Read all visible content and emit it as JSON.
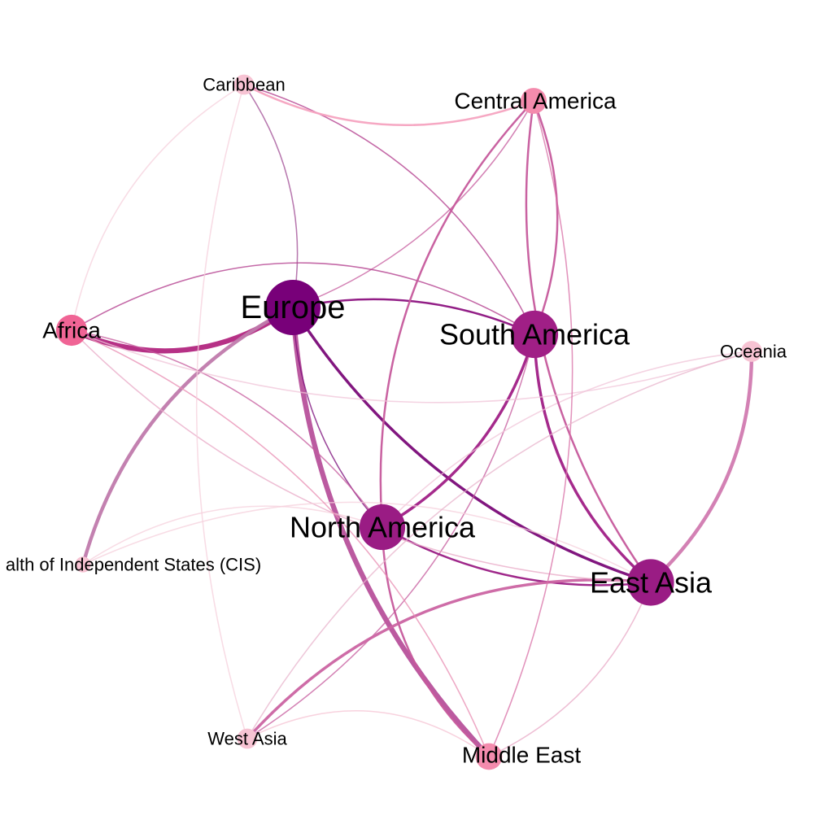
{
  "colors": {
    "strong": "#7a0a78",
    "mid": "#a01f86",
    "rose": "#c65a9c",
    "pink": "#f06495",
    "light": "#f5a3c0",
    "pale": "#f7c3d3"
  },
  "nodes": [
    {
      "id": "europe",
      "label": "Europe",
      "weight": 1.0,
      "color": "#780079"
    },
    {
      "id": "south-america",
      "label": "South America",
      "weight": 0.82,
      "color": "#a01f86"
    },
    {
      "id": "north-america",
      "label": "North America",
      "weight": 0.78,
      "color": "#9a1c84"
    },
    {
      "id": "east-asia",
      "label": "East Asia",
      "weight": 0.8,
      "color": "#9a1c84"
    },
    {
      "id": "africa",
      "label": "Africa",
      "weight": 0.45,
      "color": "#f06495"
    },
    {
      "id": "middle-east",
      "label": "Middle East",
      "weight": 0.35,
      "color": "#f48bad"
    },
    {
      "id": "central-america",
      "label": "Central America",
      "weight": 0.33,
      "color": "#f48bad"
    },
    {
      "id": "caribbean",
      "label": "Caribbean",
      "weight": 0.2,
      "color": "#f7c3d3"
    },
    {
      "id": "oceania",
      "label": "Oceania",
      "weight": 0.22,
      "color": "#f7c3d3"
    },
    {
      "id": "west-asia",
      "label": "West Asia",
      "weight": 0.2,
      "color": "#f7c3d3"
    },
    {
      "id": "cis",
      "label": "alth of Independent States (CIS)",
      "weight": 0.1,
      "color": "#f7c3d3"
    }
  ],
  "edges": [
    {
      "source": "europe",
      "target": "africa",
      "weight": 6,
      "color": "#b2267f"
    },
    {
      "source": "europe",
      "target": "middle-east",
      "weight": 6,
      "color": "#b7519b"
    },
    {
      "source": "europe",
      "target": "cis",
      "weight": 4,
      "color": "#c07aac"
    },
    {
      "source": "europe",
      "target": "east-asia",
      "weight": 3,
      "color": "#7a0a78"
    },
    {
      "source": "europe",
      "target": "south-america",
      "weight": 2,
      "color": "#8c1280"
    },
    {
      "source": "europe",
      "target": "north-america",
      "weight": 1,
      "color": "#7a0a78"
    },
    {
      "source": "europe",
      "target": "central-america",
      "weight": 1,
      "color": "#c65a9c"
    },
    {
      "source": "europe",
      "target": "caribbean",
      "weight": 1,
      "color": "#a04c94"
    },
    {
      "source": "south-america",
      "target": "north-america",
      "weight": 3,
      "color": "#a01f86"
    },
    {
      "source": "south-america",
      "target": "east-asia",
      "weight": 3,
      "color": "#a01f86"
    },
    {
      "source": "south-america",
      "target": "central-america",
      "weight": 2,
      "color": "#c65a9c"
    },
    {
      "source": "south-america",
      "target": "africa",
      "weight": 1,
      "color": "#b0378a"
    },
    {
      "source": "south-america",
      "target": "caribbean",
      "weight": 1,
      "color": "#b0378a"
    },
    {
      "source": "south-america",
      "target": "west-asia",
      "weight": 1,
      "color": "#c65a9c"
    },
    {
      "source": "north-america",
      "target": "east-asia",
      "weight": 2,
      "color": "#9a1c84"
    },
    {
      "source": "north-america",
      "target": "middle-east",
      "weight": 2,
      "color": "#c65a9c"
    },
    {
      "source": "north-america",
      "target": "central-america",
      "weight": 2,
      "color": "#c65a9c"
    },
    {
      "source": "north-america",
      "target": "africa",
      "weight": 1,
      "color": "#c65a9c"
    },
    {
      "source": "north-america",
      "target": "oceania",
      "weight": 1,
      "color": "#f0c4d8"
    },
    {
      "source": "north-america",
      "target": "cis",
      "weight": 1,
      "color": "#f5d0dc"
    },
    {
      "source": "east-asia",
      "target": "oceania",
      "weight": 4,
      "color": "#d17ab0"
    },
    {
      "source": "east-asia",
      "target": "west-asia",
      "weight": 3,
      "color": "#cb64a2"
    },
    {
      "source": "east-asia",
      "target": "central-america",
      "weight": 2,
      "color": "#c65a9c"
    },
    {
      "source": "east-asia",
      "target": "middle-east",
      "weight": 1,
      "color": "#e8a8c6"
    },
    {
      "source": "east-asia",
      "target": "africa",
      "weight": 1,
      "color": "#e8a8c6"
    },
    {
      "source": "east-asia",
      "target": "cis",
      "weight": 1,
      "color": "#f5d0dc"
    },
    {
      "source": "africa",
      "target": "oceania",
      "weight": 1,
      "color": "#f0c4d8"
    },
    {
      "source": "africa",
      "target": "middle-east",
      "weight": 1,
      "color": "#e88cb2"
    },
    {
      "source": "africa",
      "target": "caribbean",
      "weight": 1,
      "color": "#f5d0dc"
    },
    {
      "source": "caribbean",
      "target": "central-america",
      "weight": 2,
      "color": "#f5a3c0"
    },
    {
      "source": "caribbean",
      "target": "west-asia",
      "weight": 1,
      "color": "#f5d0dc"
    },
    {
      "source": "middle-east",
      "target": "west-asia",
      "weight": 1,
      "color": "#f5c3d3"
    },
    {
      "source": "central-america",
      "target": "middle-east",
      "weight": 1,
      "color": "#d86fa6"
    },
    {
      "source": "oceania",
      "target": "west-asia",
      "weight": 1,
      "color": "#e8b4cc"
    }
  ]
}
